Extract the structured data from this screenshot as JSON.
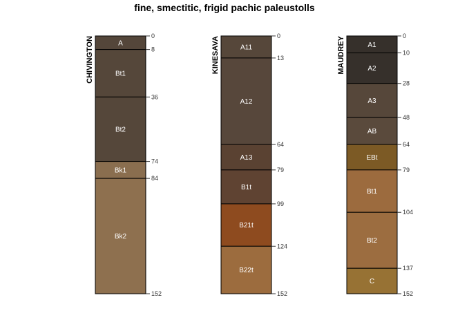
{
  "title": "fine, smectitic, frigid pachic paleustolls",
  "depth_max": 152,
  "profiles": [
    {
      "name": "CHIVINGTON",
      "horizons": [
        {
          "name": "A",
          "top": 0,
          "bottom": 8,
          "color": "#54463a"
        },
        {
          "name": "Bt1",
          "top": 8,
          "bottom": 36,
          "color": "#55473a"
        },
        {
          "name": "Bt2",
          "top": 36,
          "bottom": 74,
          "color": "#55473a"
        },
        {
          "name": "Bk1",
          "top": 74,
          "bottom": 84,
          "color": "#8a6e4f"
        },
        {
          "name": "Bk2",
          "top": 84,
          "bottom": 152,
          "color": "#8e704f"
        }
      ]
    },
    {
      "name": "KINESAVA",
      "horizons": [
        {
          "name": "A11",
          "top": 0,
          "bottom": 13,
          "color": "#56473a"
        },
        {
          "name": "A12",
          "top": 13,
          "bottom": 64,
          "color": "#57473b"
        },
        {
          "name": "A13",
          "top": 64,
          "bottom": 79,
          "color": "#5a4232"
        },
        {
          "name": "B1t",
          "top": 79,
          "bottom": 99,
          "color": "#5f4332"
        },
        {
          "name": "B21t",
          "top": 99,
          "bottom": 124,
          "color": "#8e4b1f"
        },
        {
          "name": "B22t",
          "top": 124,
          "bottom": 152,
          "color": "#9c6c3e"
        }
      ]
    },
    {
      "name": "MAUDREY",
      "horizons": [
        {
          "name": "A1",
          "top": 0,
          "bottom": 10,
          "color": "#36302b"
        },
        {
          "name": "A2",
          "top": 10,
          "bottom": 28,
          "color": "#36302b"
        },
        {
          "name": "A3",
          "top": 28,
          "bottom": 48,
          "color": "#56473a"
        },
        {
          "name": "AB",
          "top": 48,
          "bottom": 64,
          "color": "#5a4a3c"
        },
        {
          "name": "EBt",
          "top": 64,
          "bottom": 79,
          "color": "#7c5a25"
        },
        {
          "name": "Bt1",
          "top": 79,
          "bottom": 104,
          "color": "#9c6b3e"
        },
        {
          "name": "Bt2",
          "top": 104,
          "bottom": 137,
          "color": "#9c6d40"
        },
        {
          "name": "C",
          "top": 137,
          "bottom": 152,
          "color": "#977234"
        }
      ]
    }
  ]
}
